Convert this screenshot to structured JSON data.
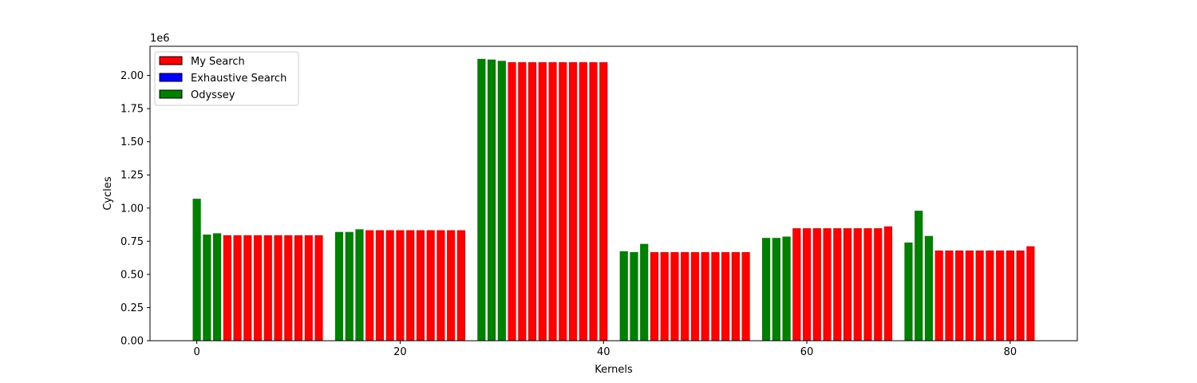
{
  "chart_data": {
    "type": "bar",
    "xlabel": "Kernels",
    "ylabel": "Cycles",
    "offset_label": "1e6",
    "xlim": [
      -4.6,
      86.6
    ],
    "ylim": [
      0,
      2.22
    ],
    "xticks": [
      0,
      20,
      40,
      60,
      80
    ],
    "yticks": [
      0.0,
      0.25,
      0.5,
      0.75,
      1.0,
      1.25,
      1.5,
      1.75,
      2.0
    ],
    "ytick_labels": [
      "0.00",
      "0.25",
      "0.50",
      "0.75",
      "1.00",
      "1.25",
      "1.50",
      "1.75",
      "2.00"
    ],
    "legend_position": "top-left",
    "series": [
      {
        "name": "My Search",
        "color": "#ff0000",
        "x": [
          3,
          4,
          5,
          6,
          7,
          8,
          9,
          10,
          11,
          12,
          17,
          18,
          19,
          20,
          21,
          22,
          23,
          24,
          25,
          26,
          31,
          32,
          33,
          34,
          35,
          36,
          37,
          38,
          39,
          40,
          45,
          46,
          47,
          48,
          49,
          50,
          51,
          52,
          53,
          54,
          59,
          60,
          61,
          62,
          63,
          64,
          65,
          66,
          67,
          68,
          73,
          74,
          75,
          76,
          77,
          78,
          79,
          80,
          81,
          82
        ],
        "values": [
          0.795,
          0.795,
          0.795,
          0.795,
          0.795,
          0.795,
          0.795,
          0.795,
          0.795,
          0.795,
          0.833,
          0.833,
          0.833,
          0.833,
          0.833,
          0.833,
          0.833,
          0.833,
          0.833,
          0.833,
          2.1,
          2.1,
          2.1,
          2.1,
          2.1,
          2.1,
          2.1,
          2.1,
          2.1,
          2.1,
          0.668,
          0.668,
          0.668,
          0.668,
          0.668,
          0.668,
          0.668,
          0.668,
          0.668,
          0.668,
          0.848,
          0.848,
          0.848,
          0.848,
          0.848,
          0.848,
          0.848,
          0.848,
          0.848,
          0.862,
          0.68,
          0.68,
          0.68,
          0.68,
          0.68,
          0.68,
          0.68,
          0.68,
          0.68,
          0.712
        ]
      },
      {
        "name": "Exhaustive Search",
        "color": "#0000ff",
        "x": [],
        "values": []
      },
      {
        "name": "Odyssey",
        "color": "#008000",
        "x": [
          0,
          1,
          2,
          14,
          15,
          16,
          28,
          29,
          30,
          42,
          43,
          44,
          56,
          57,
          58,
          70,
          71,
          72
        ],
        "values": [
          1.07,
          0.8,
          0.81,
          0.82,
          0.82,
          0.84,
          2.125,
          2.12,
          2.11,
          0.675,
          0.668,
          0.73,
          0.775,
          0.775,
          0.785,
          0.74,
          0.98,
          0.79
        ]
      }
    ]
  }
}
